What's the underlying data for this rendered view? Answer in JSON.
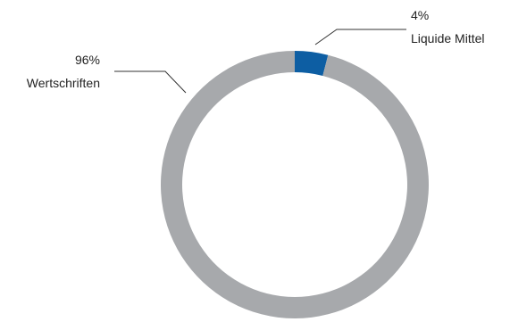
{
  "chart_data": {
    "type": "pie",
    "variant": "donut",
    "categories": [
      "Wertschriften",
      "Liquide Mittel"
    ],
    "values": [
      96,
      4
    ],
    "labels": [
      {
        "category": "Wertschriften",
        "value_text": "96%"
      },
      {
        "category": "Liquide Mittel",
        "value_text": "4%"
      }
    ],
    "colors": [
      "#a7a9ac",
      "#0d5ea3"
    ]
  }
}
